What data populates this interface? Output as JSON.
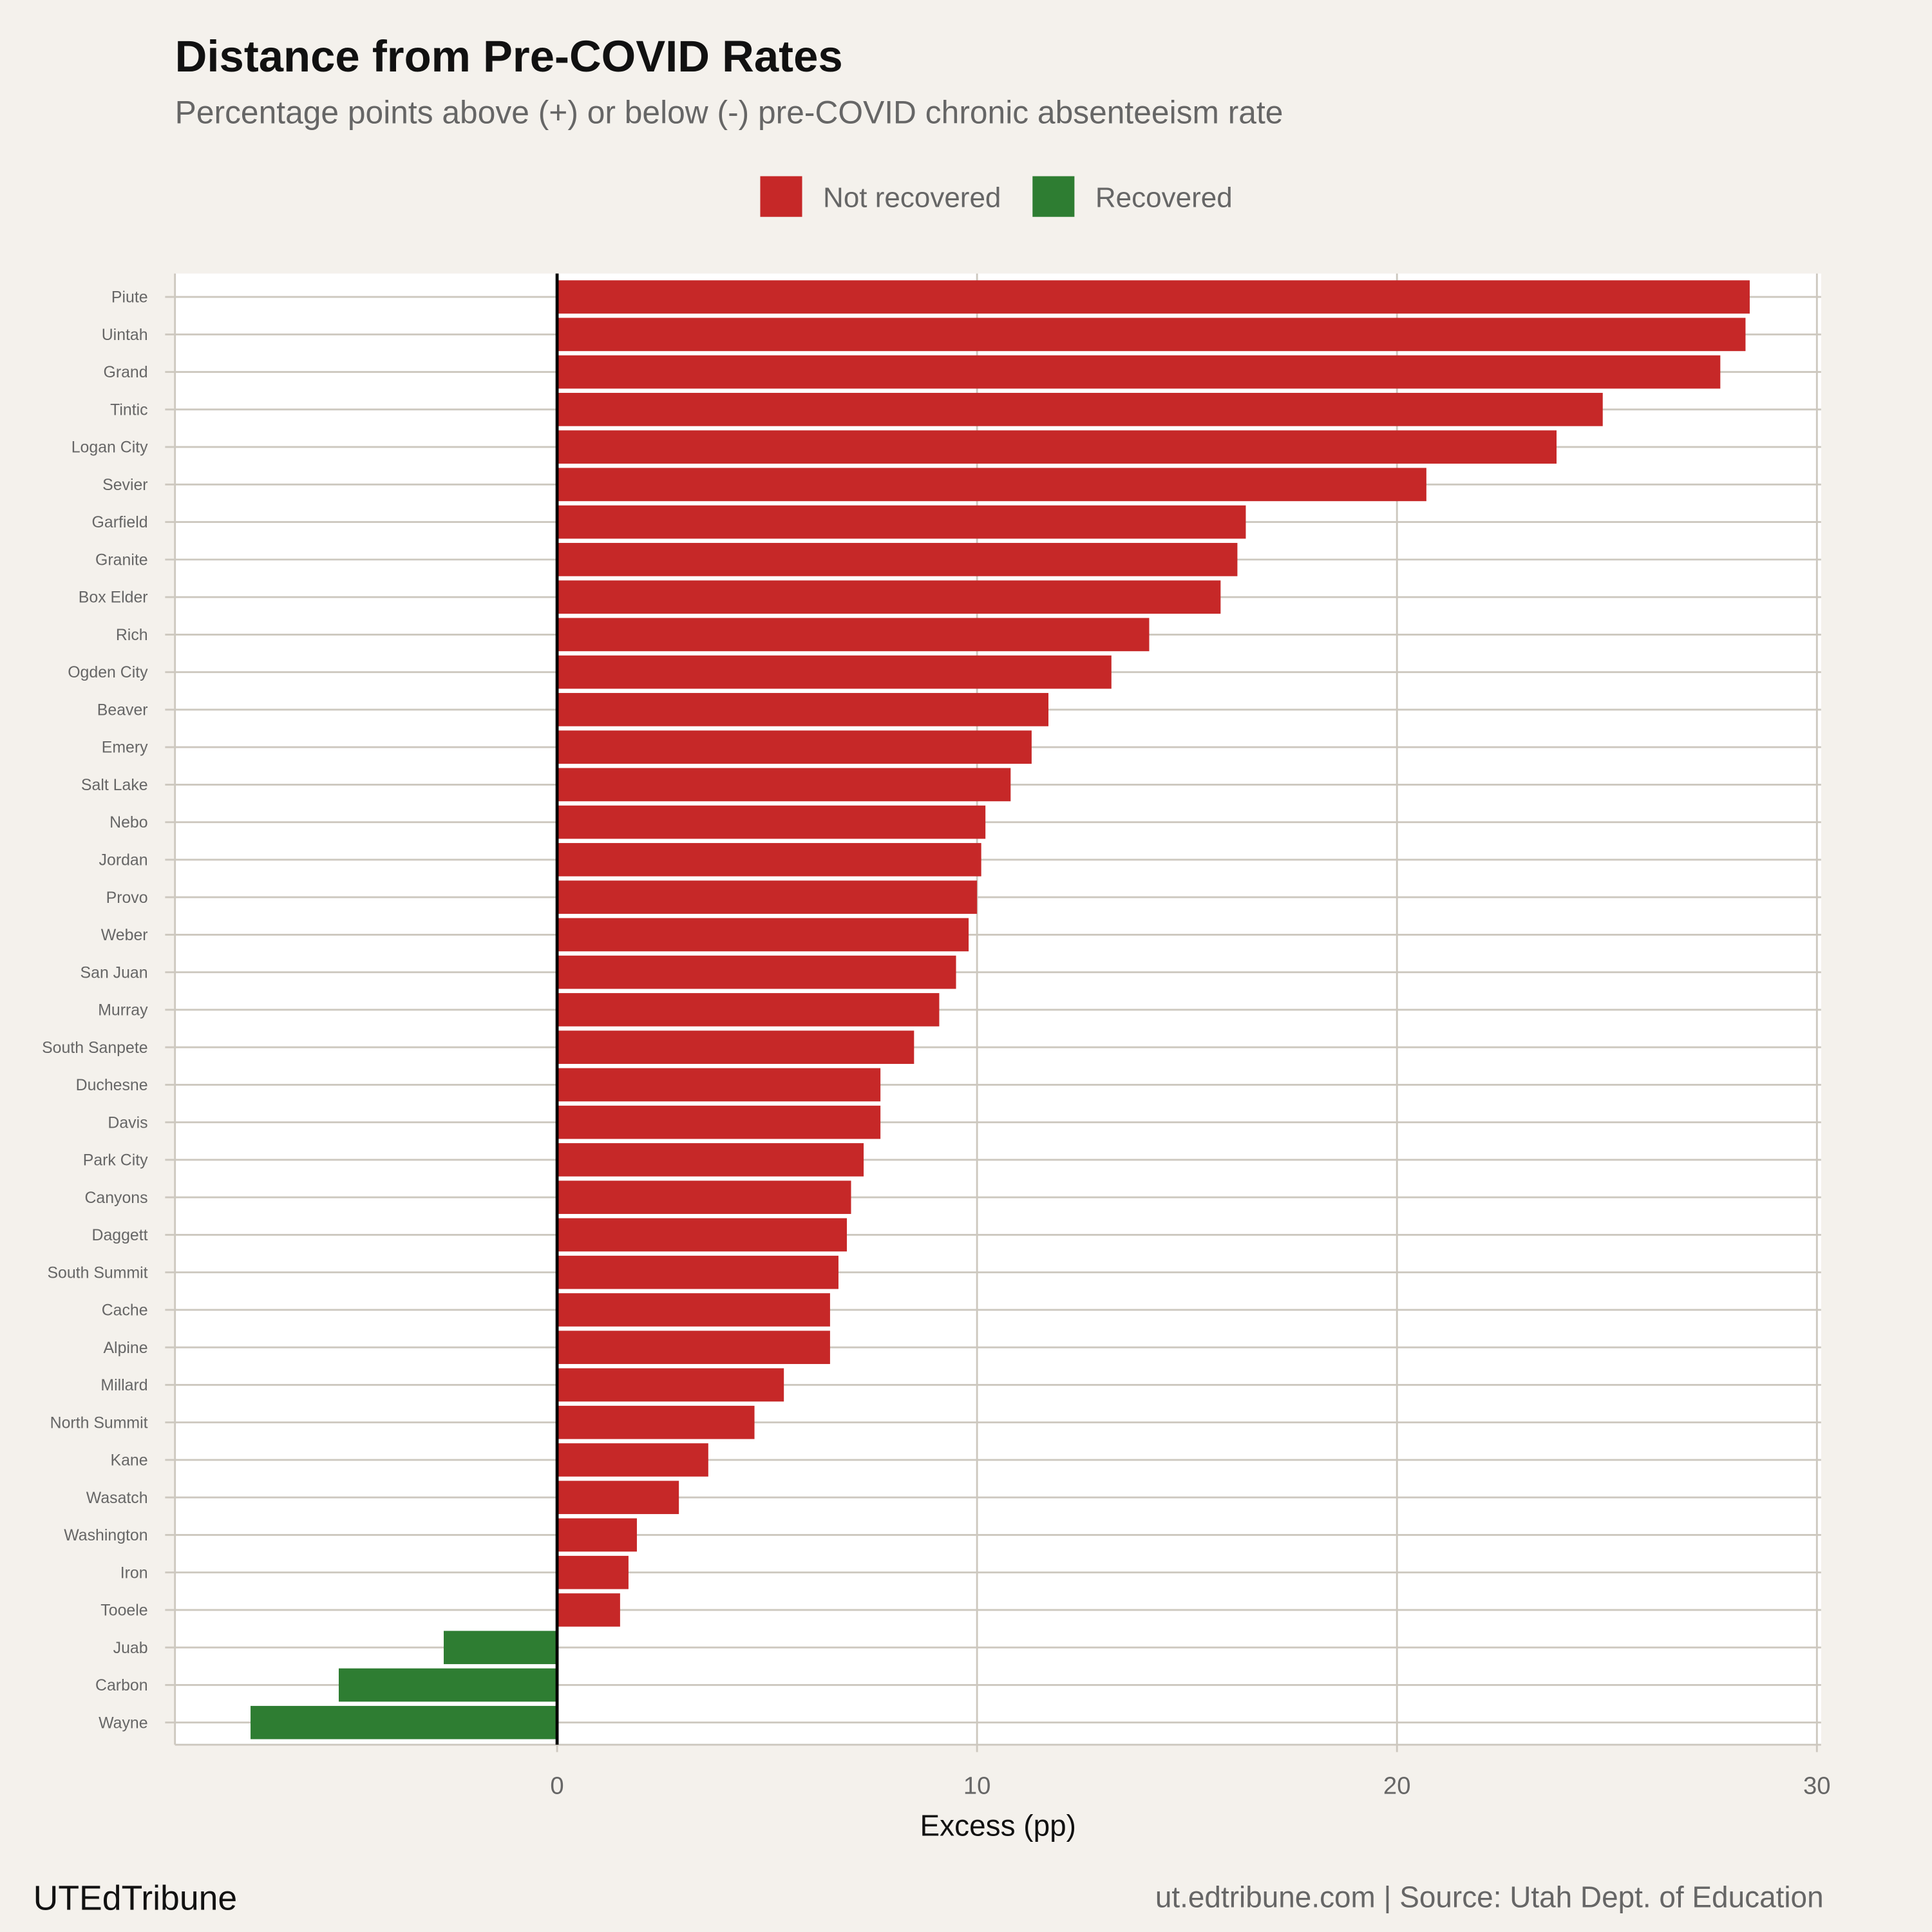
{
  "chart_data": {
    "type": "bar",
    "orientation": "horizontal",
    "title": "Distance from Pre-COVID Rates",
    "subtitle": "Percentage points above (+) or below (-) pre-COVID chronic absenteeism rate",
    "xlabel": "Excess (pp)",
    "ylabel": "",
    "xlim": [
      -9.1,
      30.1
    ],
    "xticks": [
      0,
      10,
      20,
      30
    ],
    "grid": true,
    "legend_position": "top",
    "legend": [
      {
        "name": "Not recovered",
        "color": "#c62828"
      },
      {
        "name": "Recovered",
        "color": "#2e7d32"
      }
    ],
    "categories": [
      "Piute",
      "Uintah",
      "Grand",
      "Tintic",
      "Logan City",
      "Sevier",
      "Garfield",
      "Granite",
      "Box Elder",
      "Rich",
      "Ogden City",
      "Beaver",
      "Emery",
      "Salt Lake",
      "Nebo",
      "Jordan",
      "Provo",
      "Weber",
      "San Juan",
      "Murray",
      "South Sanpete",
      "Duchesne",
      "Davis",
      "Park City",
      "Canyons",
      "Daggett",
      "South Summit",
      "Cache",
      "Alpine",
      "Millard",
      "North Summit",
      "Kane",
      "Wasatch",
      "Washington",
      "Iron",
      "Tooele",
      "Juab",
      "Carbon",
      "Wayne"
    ],
    "values": [
      28.4,
      28.3,
      27.7,
      24.9,
      23.8,
      20.7,
      16.4,
      16.2,
      15.8,
      14.1,
      13.2,
      11.7,
      11.3,
      10.8,
      10.2,
      10.1,
      10.0,
      9.8,
      9.5,
      9.1,
      8.5,
      7.7,
      7.7,
      7.3,
      7.0,
      6.9,
      6.7,
      6.5,
      6.5,
      5.4,
      4.7,
      3.6,
      2.9,
      1.9,
      1.7,
      1.5,
      -2.7,
      -5.2,
      -7.3
    ]
  },
  "footer": {
    "brand": "UTEdTribune",
    "source": "ut.edtribune.com | Source: Utah Dept. of Education"
  }
}
